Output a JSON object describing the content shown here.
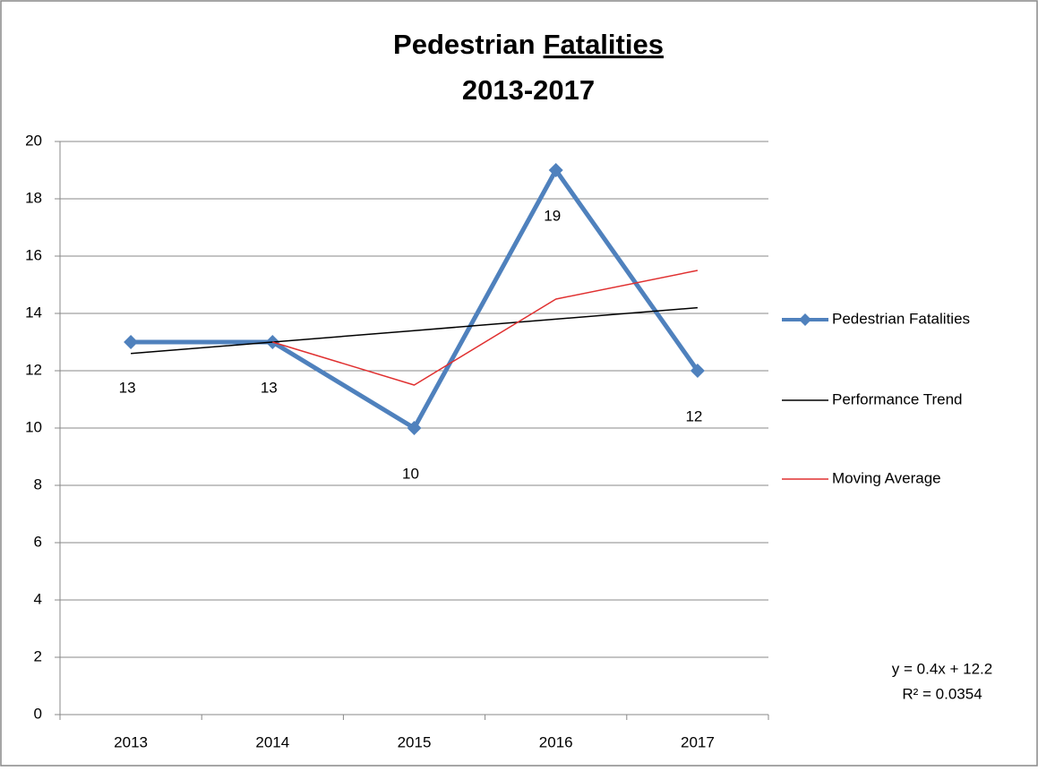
{
  "chart_data": {
    "type": "line",
    "title": [
      "Pedestrian",
      "Fatalities"
    ],
    "subtitle": "2013-2017",
    "categories": [
      "2013",
      "2014",
      "2015",
      "2016",
      "2017"
    ],
    "series": [
      {
        "name": "Pedestrian Fatalities",
        "color": "#4f81bd",
        "width": 5,
        "markers": true,
        "data_labels": true,
        "values": [
          13,
          13,
          10,
          19,
          12
        ]
      },
      {
        "name": "Performance Trend",
        "color": "#000000",
        "width": 1.5,
        "markers": false,
        "data_labels": false,
        "values": [
          12.6,
          13,
          13.4,
          13.8,
          14.2
        ]
      },
      {
        "name": "Moving Average",
        "color": "#e03030",
        "width": 1.5,
        "markers": false,
        "data_labels": false,
        "values": [
          null,
          13,
          11.5,
          14.5,
          15.5
        ]
      }
    ],
    "ylim": [
      0,
      20
    ],
    "yticks": [
      0,
      2,
      4,
      6,
      8,
      10,
      12,
      14,
      16,
      18,
      20
    ],
    "grid": true,
    "legend": "right",
    "annotations": [
      "y = 0.4x + 12.2",
      "R² = 0.0354"
    ]
  }
}
